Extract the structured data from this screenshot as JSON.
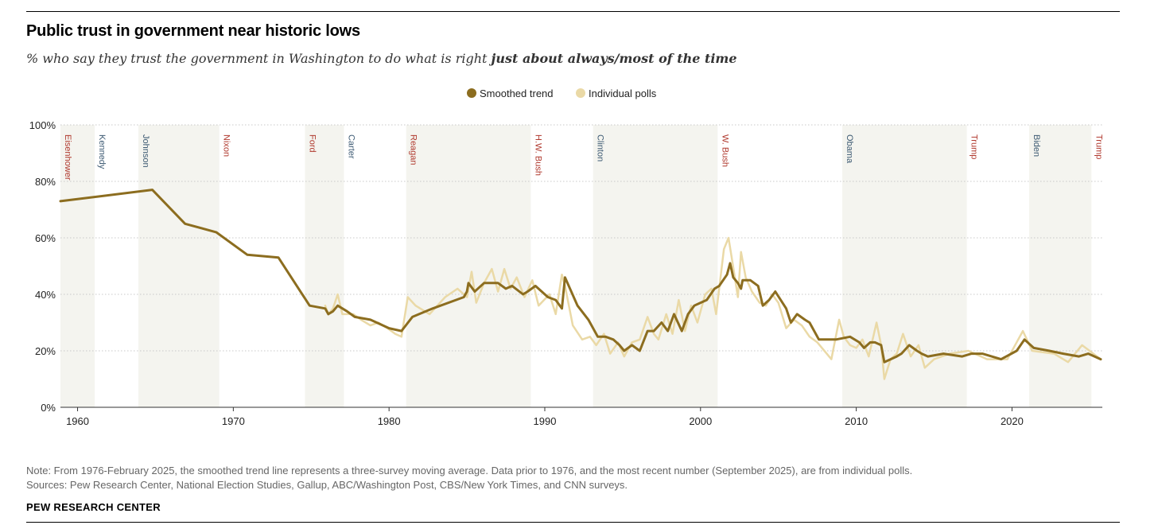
{
  "header": {
    "title": "Public trust in government near historic lows",
    "subtitle_prefix": "% who say they trust the government in Washington to do what is right ",
    "subtitle_emphasis": "just about always/most of the time"
  },
  "footer": {
    "note": "Note: From 1976-February 2025, the smoothed trend line represents a three-survey moving average. Data prior to 1976, and the most recent number (September 2025), are from individual polls.",
    "sources": "Sources: Pew Research Center, National Election Studies, Gallup, ABC/Washington Post, CBS/New York Times, and CNN surveys.",
    "brand": "PEW RESEARCH CENTER"
  },
  "colors": {
    "smoothed": "#8c6d1f",
    "polls": "#ead9a6",
    "shade": "#f4f4ef",
    "republican": "#b0392e",
    "democrat": "#3d5a73",
    "grid": "#c8c8c8"
  },
  "chart_data": {
    "type": "line",
    "title": "Public trust in government near historic lows",
    "xlim": [
      1958.9,
      2025.8
    ],
    "ylim": [
      0,
      100
    ],
    "x_ticks": [
      1960,
      1970,
      1980,
      1990,
      2000,
      2010,
      2020
    ],
    "y_ticks": [
      0,
      20,
      40,
      60,
      80,
      100
    ],
    "y_tick_labels": [
      "0%",
      "20%",
      "40%",
      "60%",
      "80%",
      "100%"
    ],
    "legend": {
      "position": "top-center",
      "items": [
        "Smoothed trend",
        "Individual polls"
      ]
    },
    "grid": true,
    "presidents": [
      {
        "name": "Eisenhower",
        "start": 1958.9,
        "end": 1961.1,
        "party": "R"
      },
      {
        "name": "Kennedy",
        "start": 1961.1,
        "end": 1963.9,
        "party": "D"
      },
      {
        "name": "Johnson",
        "start": 1963.9,
        "end": 1969.1,
        "party": "D"
      },
      {
        "name": "Nixon",
        "start": 1969.1,
        "end": 1974.6,
        "party": "R"
      },
      {
        "name": "Ford",
        "start": 1974.6,
        "end": 1977.1,
        "party": "R"
      },
      {
        "name": "Carter",
        "start": 1977.1,
        "end": 1981.1,
        "party": "D"
      },
      {
        "name": "Reagan",
        "start": 1981.1,
        "end": 1989.1,
        "party": "R"
      },
      {
        "name": "H.W. Bush",
        "start": 1989.1,
        "end": 1993.1,
        "party": "R"
      },
      {
        "name": "Clinton",
        "start": 1993.1,
        "end": 2001.1,
        "party": "D"
      },
      {
        "name": "W. Bush",
        "start": 2001.1,
        "end": 2009.1,
        "party": "R"
      },
      {
        "name": "Obama",
        "start": 2009.1,
        "end": 2017.1,
        "party": "D"
      },
      {
        "name": "Trump",
        "start": 2017.1,
        "end": 2021.1,
        "party": "R"
      },
      {
        "name": "Biden",
        "start": 2021.1,
        "end": 2025.1,
        "party": "D"
      },
      {
        "name": "Trump",
        "start": 2025.1,
        "end": 2025.8,
        "party": "R"
      }
    ],
    "series": [
      {
        "name": "Smoothed trend",
        "x": [
          1958.9,
          1964.8,
          1966.9,
          1968.9,
          1970.9,
          1972.9,
          1974.9,
          1975.9,
          1976.1,
          1976.4,
          1976.7,
          1977.3,
          1977.8,
          1978.8,
          1980.0,
          1980.8,
          1981.5,
          1982.8,
          1984.8,
          1985.0,
          1985.1,
          1985.5,
          1986.1,
          1987.0,
          1987.5,
          1987.9,
          1988.6,
          1988.9,
          1989.4,
          1990.2,
          1990.7,
          1991.1,
          1991.3,
          1992.1,
          1992.8,
          1993.4,
          1993.9,
          1994.4,
          1994.8,
          1995.1,
          1995.6,
          1996.1,
          1996.6,
          1997.0,
          1997.5,
          1997.9,
          1998.3,
          1998.8,
          1999.2,
          1999.6,
          2000.0,
          2000.4,
          2000.9,
          2001.2,
          2001.7,
          2001.9,
          2002.1,
          2002.4,
          2002.6,
          2002.7,
          2003.2,
          2003.7,
          2004.0,
          2004.4,
          2004.8,
          2005.5,
          2005.8,
          2006.2,
          2006.7,
          2007.0,
          2007.6,
          2008.7,
          2009.6,
          2010.2,
          2010.5,
          2010.9,
          2011.2,
          2011.6,
          2011.8,
          2012.6,
          2012.9,
          2013.4,
          2013.9,
          2014.2,
          2014.6,
          2015.6,
          2016.8,
          2017.4,
          2018.1,
          2019.3,
          2020.3,
          2020.8,
          2021.4,
          2022.4,
          2023.3,
          2024.3,
          2024.9,
          2025.7
        ],
        "values": [
          73,
          77,
          65,
          62,
          54,
          53,
          36,
          35,
          33,
          34,
          36,
          34,
          32,
          31,
          28,
          27,
          32,
          35,
          39,
          41,
          44,
          41,
          44,
          44,
          42,
          43,
          40,
          41,
          43,
          39,
          38,
          35,
          46,
          36,
          31,
          25,
          25,
          24,
          22,
          20,
          22,
          20,
          27,
          27,
          30,
          27,
          33,
          27,
          33,
          36,
          37,
          38,
          42,
          43,
          47,
          51,
          46,
          44,
          42,
          45,
          45,
          43,
          36,
          38,
          41,
          35,
          30,
          33,
          31,
          30,
          24,
          24,
          25,
          23,
          21,
          23,
          23,
          22,
          16,
          18,
          19,
          22,
          20,
          19,
          18,
          19,
          18,
          19,
          19,
          17,
          20,
          24,
          21,
          20,
          19,
          18,
          19,
          17
        ]
      },
      {
        "name": "Individual polls",
        "x": [
          1975.9,
          1976.1,
          1976.4,
          1976.7,
          1977.0,
          1977.3,
          1977.7,
          1978.2,
          1978.8,
          1979.3,
          1979.9,
          1980.4,
          1980.8,
          1981.2,
          1981.7,
          1982.6,
          1983.6,
          1984.4,
          1985.0,
          1985.3,
          1985.6,
          1986.1,
          1986.6,
          1987.0,
          1987.4,
          1987.8,
          1988.2,
          1988.7,
          1989.2,
          1989.6,
          1990.3,
          1990.7,
          1991.1,
          1991.3,
          1991.8,
          1992.4,
          1992.9,
          1993.3,
          1993.8,
          1994.2,
          1994.7,
          1995.1,
          1995.6,
          1996.1,
          1996.6,
          1997.0,
          1997.3,
          1997.8,
          1998.2,
          1998.6,
          1999.0,
          1999.4,
          1999.8,
          2000.3,
          2000.7,
          2001.0,
          2001.5,
          2001.8,
          2002.0,
          2002.4,
          2002.6,
          2002.9,
          2003.3,
          2003.8,
          2004.2,
          2004.6,
          2005.0,
          2005.5,
          2006.0,
          2006.5,
          2007.0,
          2007.5,
          2008.4,
          2008.9,
          2009.2,
          2009.6,
          2010.0,
          2010.4,
          2010.8,
          2011.3,
          2011.6,
          2011.8,
          2012.2,
          2012.6,
          2013.0,
          2013.5,
          2014.0,
          2014.4,
          2015.0,
          2016.0,
          2017.2,
          2018.4,
          2019.7,
          2020.7,
          2021.3,
          2022.7,
          2023.6,
          2024.5,
          2025.7
        ],
        "values": [
          36,
          33,
          35,
          40,
          33,
          33,
          33,
          31,
          29,
          30,
          28,
          26,
          25,
          39,
          36,
          33,
          39,
          42,
          39,
          48,
          37,
          44,
          49,
          41,
          49,
          42,
          46,
          39,
          45,
          36,
          40,
          33,
          47,
          43,
          29,
          24,
          25,
          22,
          26,
          19,
          23,
          18,
          23,
          24,
          32,
          26,
          24,
          33,
          26,
          38,
          27,
          36,
          30,
          40,
          42,
          33,
          56,
          60,
          53,
          39,
          55,
          46,
          41,
          37,
          36,
          40,
          37,
          28,
          31,
          29,
          25,
          23,
          17,
          31,
          25,
          22,
          21,
          24,
          18,
          30,
          22,
          10,
          17,
          19,
          26,
          18,
          22,
          14,
          17,
          19,
          20,
          17,
          17,
          27,
          20,
          19,
          16,
          22,
          17
        ]
      }
    ]
  }
}
